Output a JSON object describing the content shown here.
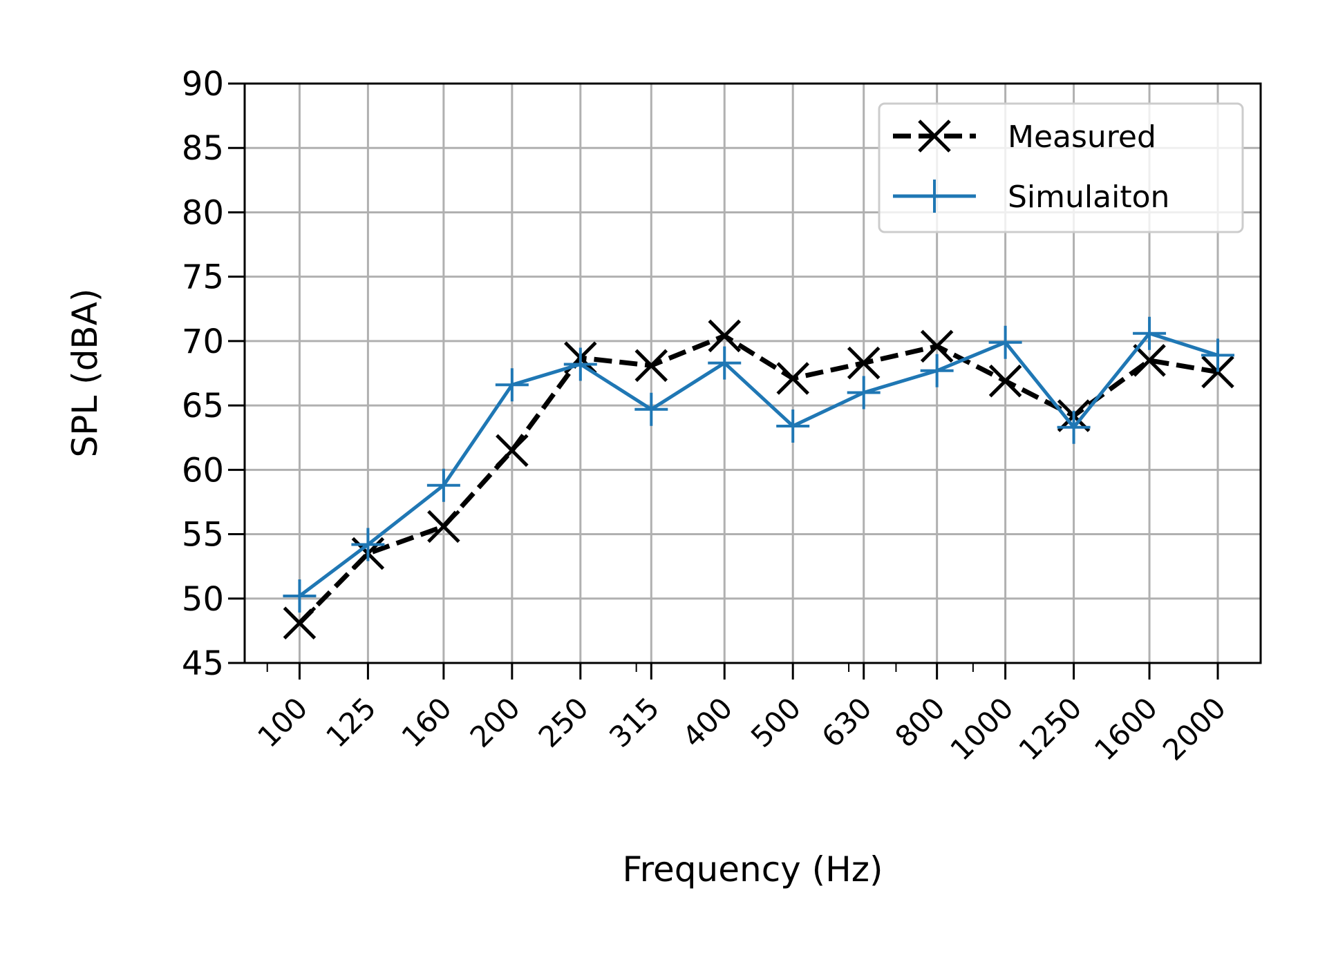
{
  "chart_data": {
    "type": "line",
    "xscale": "log",
    "categories": [
      "100",
      "125",
      "160",
      "200",
      "250",
      "315",
      "400",
      "500",
      "630",
      "800",
      "1000",
      "1250",
      "1600",
      "2000"
    ],
    "x": [
      100,
      125,
      160,
      200,
      250,
      315,
      400,
      500,
      630,
      800,
      1000,
      1250,
      1600,
      2000
    ],
    "xlabel": "Frequency (Hz)",
    "ylabel": "SPL (dBA)",
    "ylim": [
      45,
      90
    ],
    "yticks": [
      45,
      50,
      55,
      60,
      65,
      70,
      75,
      80,
      85,
      90
    ],
    "grid": true,
    "legend_position": "top-right",
    "series": [
      {
        "name": "Measured",
        "color": "#000000",
        "marker": "x",
        "linestyle": "dashed",
        "values": [
          48.1,
          53.5,
          55.6,
          61.5,
          68.7,
          68.1,
          70.4,
          67.1,
          68.3,
          69.6,
          66.9,
          64.2,
          68.5,
          67.6
        ]
      },
      {
        "name": "Simulaiton",
        "color": "#1f77b4",
        "marker": "+",
        "linestyle": "solid",
        "values": [
          50.2,
          54.2,
          58.8,
          66.6,
          68.2,
          64.7,
          68.3,
          63.4,
          66.0,
          67.7,
          69.9,
          63.3,
          70.6,
          68.9
        ]
      }
    ]
  }
}
